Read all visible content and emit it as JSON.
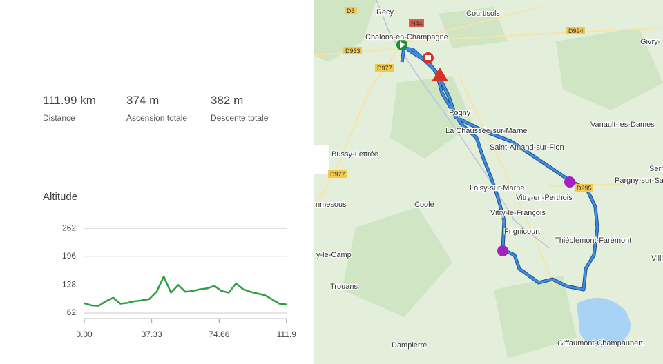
{
  "stats": [
    {
      "value": "111.99 km",
      "label": "Distance"
    },
    {
      "value": "374 m",
      "label": "Ascension totale"
    },
    {
      "value": "382 m",
      "label": "Descente totale"
    }
  ],
  "altitude_title": "Altitude",
  "chart_data": {
    "type": "line",
    "x": [
      0,
      4,
      8,
      12,
      16,
      20,
      24,
      28,
      32,
      36,
      40,
      44,
      48,
      52,
      56,
      60,
      64,
      68,
      72,
      76,
      80,
      84,
      88,
      92,
      96,
      100,
      104,
      108,
      111.99
    ],
    "series": [
      {
        "color": "#2e9e3e",
        "values": [
          85,
          80,
          79,
          90,
          98,
          84,
          86,
          90,
          92,
          95,
          112,
          148,
          110,
          128,
          112,
          114,
          118,
          120,
          126,
          114,
          110,
          132,
          118,
          112,
          108,
          104,
          94,
          84,
          82
        ]
      }
    ],
    "xlim": [
      0,
      111.99
    ],
    "xticks": [
      {
        "value": 0,
        "label": "0.00"
      },
      37.33,
      74.66,
      111.9
    ],
    "ylim": [
      49,
      272
    ],
    "yticks": [
      62,
      128,
      196,
      262
    ],
    "grid": true
  },
  "map": {
    "places": [
      "Recy",
      "Courtisols",
      "Châlons-en-Champagne",
      "Givry-",
      "Pogny",
      "La Chaussée-sur-Marne",
      "Vanault-les-Dames",
      "Saint-Amand-sur-Fion",
      "Bussy-Lettrée",
      "Serr",
      "Pargny-sur-Sa",
      "Loisy-sur-Marne",
      "Vitry-en-Perthois",
      "Coole",
      "nmesous",
      "Vitry-le-François",
      "Frignicourt",
      "Thiéblemont-Farémont",
      "y-le-Camp",
      "Vill",
      "Trouans",
      "Dampierre",
      "Giffaumont-Champaubert"
    ],
    "roads": [
      "D3",
      "N44",
      "D994",
      "D933",
      "D977",
      "D977",
      "D995"
    ]
  }
}
